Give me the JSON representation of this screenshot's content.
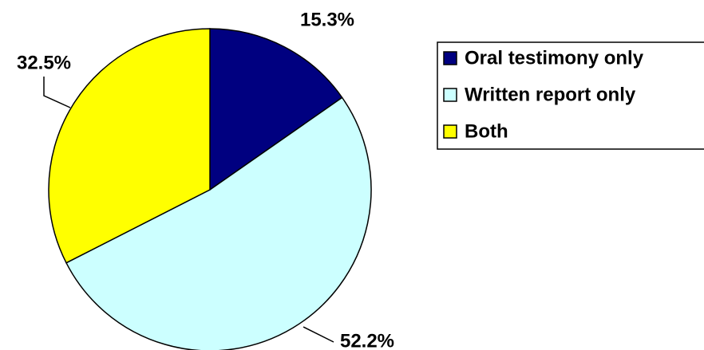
{
  "chart_data": {
    "type": "pie",
    "categories": [
      "Oral testimony only",
      "Written report only",
      "Both"
    ],
    "values": [
      15.3,
      52.2,
      32.5
    ],
    "value_labels": [
      "15.3%",
      "52.2%",
      "32.5%"
    ],
    "colors": [
      "#000080",
      "#ccffff",
      "#ffff00"
    ],
    "legend": "right"
  }
}
